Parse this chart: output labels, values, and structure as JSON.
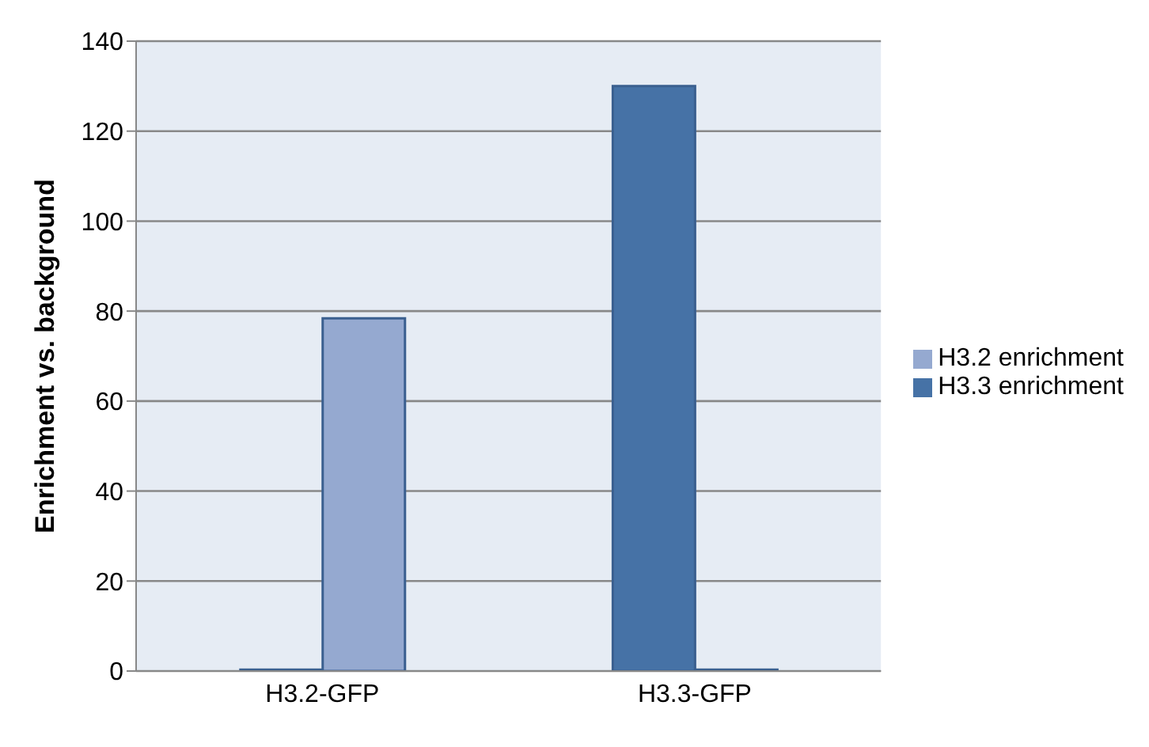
{
  "chart_data": {
    "type": "bar",
    "ylabel": "Enrichment vs. background",
    "categories": [
      "H3.2-GFP",
      "H3.3-GFP"
    ],
    "series": [
      {
        "name": "H3.3 enrichment",
        "color": "#4672a6",
        "values": [
          0.3,
          130
        ]
      },
      {
        "name": "H3.2 enrichment",
        "color": "#95a9d0",
        "values": [
          78.4,
          0.3
        ]
      }
    ],
    "ylim": [
      0,
      140
    ],
    "yticks": [
      0,
      20,
      40,
      60,
      80,
      100,
      120,
      140
    ],
    "grid": "y",
    "legend": "right"
  }
}
